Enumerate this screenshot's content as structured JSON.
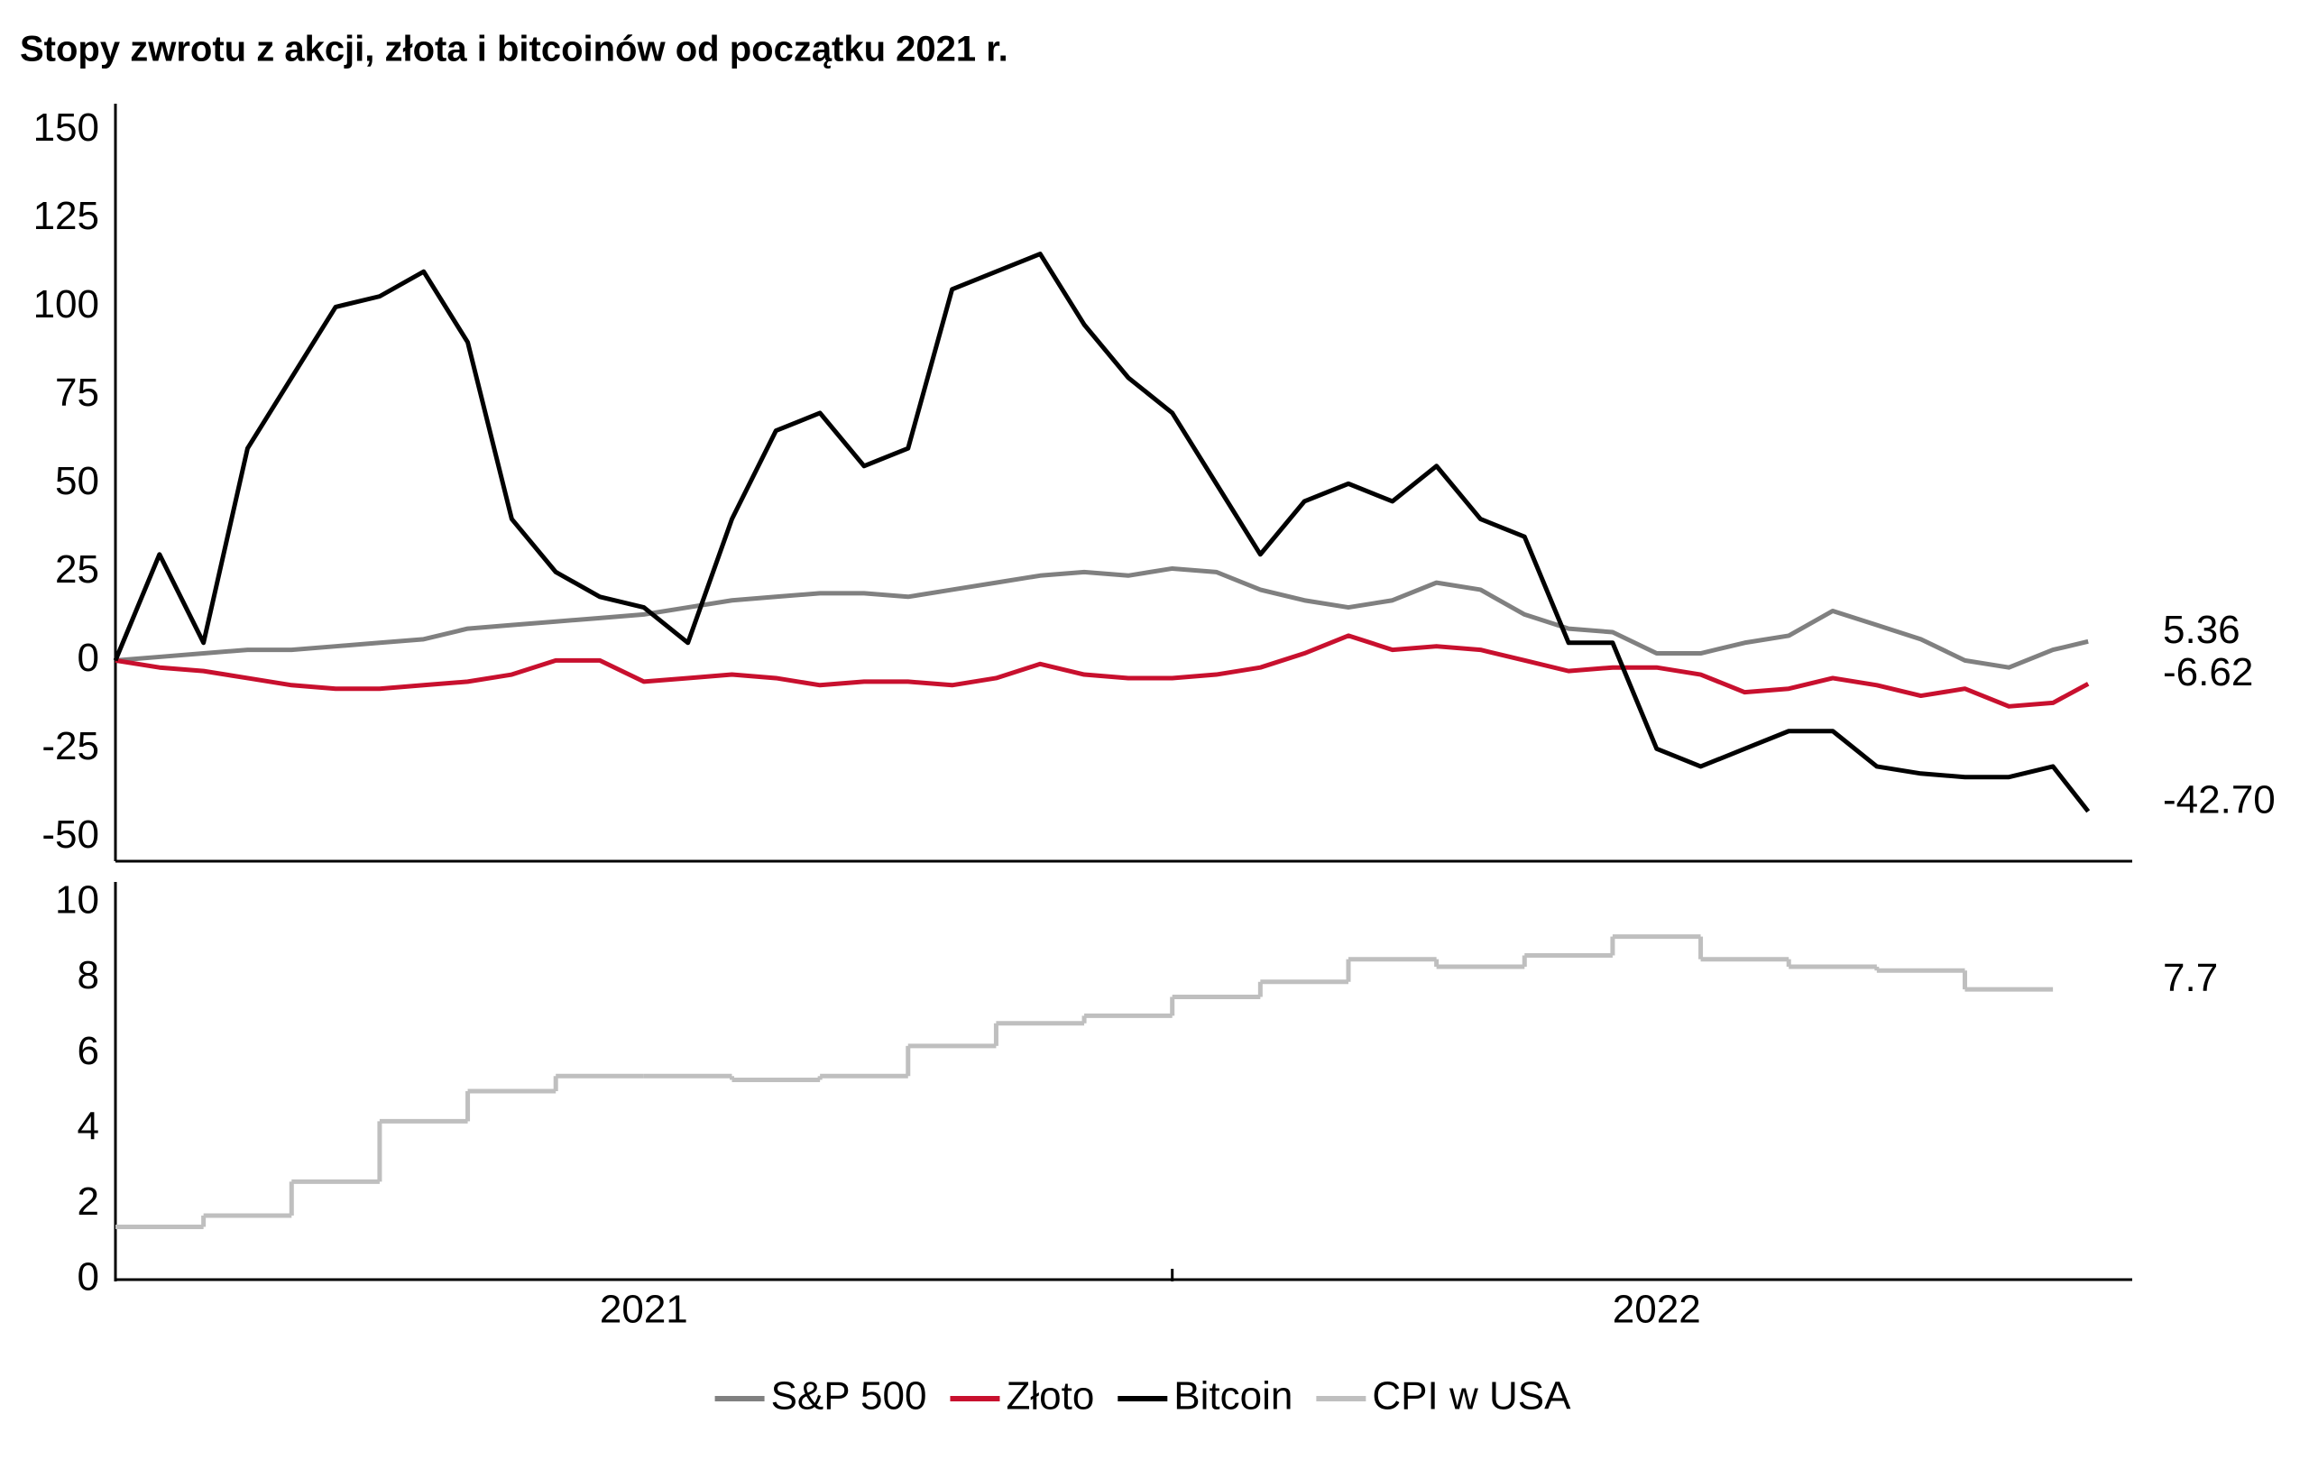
{
  "chart_data": [
    {
      "type": "line",
      "title": "Stopy zwrotu z akcji, złota i bitcoinów od początku 2021 r.",
      "x": [
        0,
        0.5,
        1,
        1.5,
        2,
        2.5,
        3,
        3.5,
        4,
        4.5,
        5,
        5.5,
        6,
        6.5,
        7,
        7.5,
        8,
        8.5,
        9,
        9.5,
        10,
        10.5,
        11,
        11.5,
        12,
        12.5,
        13,
        13.5,
        14,
        14.5,
        15,
        15.5,
        16,
        16.5,
        17,
        17.5,
        18,
        18.5,
        19,
        19.5,
        20,
        20.5,
        21,
        21.5,
        22,
        22.4
      ],
      "xlim": [
        0,
        22.9
      ],
      "ylim": [
        -56.8,
        157.5
      ],
      "yticks": [
        -50,
        -25,
        0,
        25,
        50,
        75,
        100,
        125,
        150
      ],
      "series": [
        {
          "name": "S&P 500",
          "color": "#808080",
          "values": [
            0,
            1,
            2,
            3,
            3,
            4,
            5,
            6,
            9,
            10,
            11,
            12,
            13,
            15,
            17,
            18,
            19,
            19,
            18,
            20,
            22,
            24,
            25,
            24,
            26,
            25,
            20,
            17,
            15,
            17,
            22,
            20,
            13,
            9,
            8,
            2,
            2,
            5,
            7,
            14,
            10,
            6,
            0,
            -2,
            3,
            5.36
          ],
          "value_labels": [
            null,
            null,
            null,
            null,
            null,
            null,
            null,
            null,
            null,
            null,
            null,
            null,
            null,
            null,
            null,
            null,
            null,
            null,
            null,
            null,
            null,
            null,
            null,
            null,
            null,
            null,
            null,
            null,
            null,
            null,
            null,
            null,
            null,
            null,
            null,
            null,
            null,
            null,
            null,
            null,
            null,
            null,
            null,
            null,
            null,
            "5.36"
          ]
        },
        {
          "name": "Złoto",
          "color": "#c8102e",
          "values": [
            0,
            -2,
            -3,
            -5,
            -7,
            -8,
            -8,
            -7,
            -6,
            -4,
            0,
            0,
            -6,
            -5,
            -4,
            -5,
            -7,
            -6,
            -6,
            -7,
            -5,
            -1,
            -4,
            -5,
            -5,
            -4,
            -2,
            2,
            7,
            3,
            4,
            3,
            0,
            -3,
            -2,
            -2,
            -4,
            -9,
            -8,
            -5,
            -7,
            -10,
            -8,
            -13,
            -12,
            -6.62
          ],
          "value_labels": [
            null,
            null,
            null,
            null,
            null,
            null,
            null,
            null,
            null,
            null,
            null,
            null,
            null,
            null,
            null,
            null,
            null,
            null,
            null,
            null,
            null,
            null,
            null,
            null,
            null,
            null,
            null,
            null,
            null,
            null,
            null,
            null,
            null,
            null,
            null,
            null,
            null,
            null,
            null,
            null,
            null,
            null,
            null,
            null,
            null,
            "-6.62"
          ]
        },
        {
          "name": "Bitcoin",
          "color": "#000000",
          "values": [
            0,
            30,
            5,
            60,
            80,
            100,
            103,
            110,
            90,
            40,
            25,
            18,
            15,
            5,
            40,
            65,
            70,
            55,
            60,
            105,
            110,
            115,
            95,
            80,
            70,
            50,
            30,
            45,
            50,
            45,
            55,
            40,
            35,
            5,
            5,
            -25,
            -30,
            -25,
            -20,
            -20,
            -30,
            -32,
            -33,
            -33,
            -30,
            -42.7
          ],
          "value_labels": [
            null,
            null,
            null,
            null,
            null,
            null,
            null,
            null,
            null,
            null,
            null,
            null,
            null,
            null,
            null,
            null,
            null,
            null,
            null,
            null,
            null,
            null,
            null,
            null,
            null,
            null,
            null,
            null,
            null,
            null,
            null,
            null,
            null,
            null,
            null,
            null,
            null,
            null,
            null,
            null,
            null,
            null,
            null,
            null,
            null,
            "-42.70"
          ]
        }
      ]
    },
    {
      "type": "step",
      "x": [
        0,
        1,
        2,
        3,
        4,
        5,
        6,
        7,
        8,
        9,
        10,
        11,
        12,
        13,
        14,
        15,
        16,
        17,
        18,
        19,
        20,
        21
      ],
      "xlim": [
        0,
        22.9
      ],
      "xticks": [
        0,
        12
      ],
      "year_labels": [
        {
          "value": 6,
          "label": "2021"
        },
        {
          "value": 17.5,
          "label": "2022"
        }
      ],
      "ylim": [
        0,
        10.55
      ],
      "yticks": [
        0,
        2,
        4,
        6,
        8,
        10
      ],
      "series": [
        {
          "name": "CPI w USA",
          "color": "#bfbfbf",
          "values": [
            1.4,
            1.7,
            2.6,
            4.2,
            5.0,
            5.4,
            5.4,
            5.3,
            5.4,
            6.2,
            6.8,
            7.0,
            7.5,
            7.9,
            8.5,
            8.3,
            8.6,
            9.1,
            8.5,
            8.3,
            8.2,
            7.7
          ],
          "value_labels": [
            null,
            null,
            null,
            null,
            null,
            null,
            null,
            null,
            null,
            null,
            null,
            null,
            null,
            null,
            null,
            null,
            null,
            null,
            null,
            null,
            null,
            "7.7"
          ]
        }
      ]
    }
  ]
}
